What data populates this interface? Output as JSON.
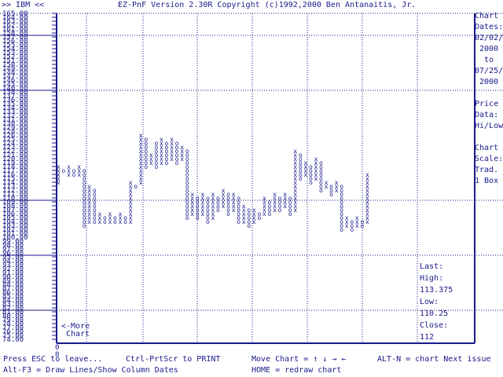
{
  "header": {
    "symbol_label": ">> IBM <<",
    "title": "EZ-PnF Version 2.30R Copyright (c)1992,2000 Ben Antanaitis, Jr."
  },
  "sidebar": {
    "chart_dates_label_1": "Chart",
    "chart_dates_label_2": "Dates:",
    "date_start": "02/02/",
    "year_start": "2000",
    "to": "to",
    "date_end": "07/25/",
    "year_end": "2000",
    "price_label_1": "Price",
    "price_label_2": "Data:",
    "price_value": "Hi/Low",
    "scale_label_1": "Chart",
    "scale_label_2": "Scale:",
    "scale_value_1": "Trad.",
    "scale_value_2": "1 Box"
  },
  "stats": {
    "last_label": "Last:",
    "high_label": "High:",
    "high_value": "113.375",
    "low_label": "Low:",
    "low_value": "110.25",
    "close_label": "Close:",
    "close_value": "112"
  },
  "more_chart": {
    "line1": "<-More",
    "line2": "Chart"
  },
  "x_axis": {
    "zero_label": "0"
  },
  "footer": {
    "esc": "Press ESC to leave...",
    "print": "Ctrl-PrtScr to PRINT",
    "move": "Move Chart = ↑ ↓ → ←",
    "next": "ALT-N = chart Next issue",
    "draw": "Alt-F3 = Draw Lines/Show Column Dates",
    "home": "HOME = redraw chart"
  },
  "colors": {
    "ink": "#1a1a8c",
    "background": "#ffffff"
  },
  "chart_data": {
    "type": "point-and-figure",
    "y_ticks": [
      "165.00",
      "164.00",
      "163.00",
      "162.00",
      "161.00",
      "158.00",
      "157.00",
      "156.00",
      "155.00",
      "154.00",
      "153.00",
      "152.00",
      "151.00",
      "150.00",
      "149.00",
      "148.00",
      "147.00",
      "146.00",
      "145.00",
      "140.00",
      "138.00",
      "137.00",
      "136.00",
      "135.00",
      "134.00",
      "133.00",
      "132.00",
      "131.00",
      "130.00",
      "129.00",
      "128.00",
      "126.00",
      "125.00",
      "124.00",
      "123.00",
      "122.00",
      "121.00",
      "120.00",
      "119.00",
      "118.00",
      "117.00",
      "116.00",
      "115.00",
      "114.00",
      "113.00",
      "112.00",
      "111.00",
      "110.00",
      "109.00",
      "108.00",
      "107.00",
      "106.00",
      "105.00",
      "104.00",
      "103.00",
      "102.00",
      "101.00",
      "100.00",
      "99.00",
      "98.00",
      "97.00",
      "96.00",
      "95.00",
      "94.00",
      "93.00",
      "92.00",
      "91.00",
      "90.00",
      "89.00",
      "88.00",
      "87.00",
      "86.00",
      "85.00",
      "84.00",
      "83.00",
      "82.00",
      "81.00",
      "80.00",
      "79.00",
      "78.00",
      "77.00",
      "76.00",
      "75.00",
      "74.00"
    ],
    "columns": [
      {
        "type": "X",
        "from": 114,
        "to": 118
      },
      {
        "type": "O",
        "from": 117,
        "to": 117
      },
      {
        "type": "X",
        "from": 116,
        "to": 118
      },
      {
        "type": "O",
        "from": 116,
        "to": 117
      },
      {
        "type": "X",
        "from": 116,
        "to": 118
      },
      {
        "type": "O",
        "from": 103,
        "to": 117
      },
      {
        "type": "X",
        "from": 104,
        "to": 113
      },
      {
        "type": "O",
        "from": 104,
        "to": 112
      },
      {
        "type": "X",
        "from": 104,
        "to": 106
      },
      {
        "type": "O",
        "from": 104,
        "to": 105
      },
      {
        "type": "X",
        "from": 104,
        "to": 106
      },
      {
        "type": "O",
        "from": 104,
        "to": 105
      },
      {
        "type": "X",
        "from": 104,
        "to": 106
      },
      {
        "type": "O",
        "from": 104,
        "to": 105
      },
      {
        "type": "X",
        "from": 104,
        "to": 114
      },
      {
        "type": "O",
        "from": 113,
        "to": 113
      },
      {
        "type": "X",
        "from": 114,
        "to": 126
      },
      {
        "type": "O",
        "from": 118,
        "to": 125
      },
      {
        "type": "X",
        "from": 119,
        "to": 121
      },
      {
        "type": "O",
        "from": 118,
        "to": 124
      },
      {
        "type": "X",
        "from": 119,
        "to": 125
      },
      {
        "type": "O",
        "from": 119,
        "to": 124
      },
      {
        "type": "X",
        "from": 120,
        "to": 125
      },
      {
        "type": "O",
        "from": 119,
        "to": 124
      },
      {
        "type": "X",
        "from": 120,
        "to": 123
      },
      {
        "type": "O",
        "from": 105,
        "to": 122
      },
      {
        "type": "X",
        "from": 106,
        "to": 111
      },
      {
        "type": "O",
        "from": 105,
        "to": 110
      },
      {
        "type": "X",
        "from": 106,
        "to": 111
      },
      {
        "type": "O",
        "from": 104,
        "to": 110
      },
      {
        "type": "X",
        "from": 105,
        "to": 111
      },
      {
        "type": "O",
        "from": 107,
        "to": 110
      },
      {
        "type": "X",
        "from": 108,
        "to": 112
      },
      {
        "type": "O",
        "from": 106,
        "to": 111
      },
      {
        "type": "X",
        "from": 107,
        "to": 111
      },
      {
        "type": "O",
        "from": 104,
        "to": 110
      },
      {
        "type": "X",
        "from": 104,
        "to": 108
      },
      {
        "type": "O",
        "from": 103,
        "to": 107
      },
      {
        "type": "X",
        "from": 104,
        "to": 107
      },
      {
        "type": "O",
        "from": 105,
        "to": 106
      },
      {
        "type": "X",
        "from": 106,
        "to": 110
      },
      {
        "type": "O",
        "from": 106,
        "to": 109
      },
      {
        "type": "X",
        "from": 107,
        "to": 111
      },
      {
        "type": "O",
        "from": 107,
        "to": 110
      },
      {
        "type": "X",
        "from": 108,
        "to": 111
      },
      {
        "type": "O",
        "from": 106,
        "to": 110
      },
      {
        "type": "X",
        "from": 107,
        "to": 122
      },
      {
        "type": "O",
        "from": 115,
        "to": 121
      },
      {
        "type": "X",
        "from": 116,
        "to": 119
      },
      {
        "type": "O",
        "from": 114,
        "to": 118
      },
      {
        "type": "X",
        "from": 115,
        "to": 120
      },
      {
        "type": "O",
        "from": 112,
        "to": 119
      },
      {
        "type": "X",
        "from": 113,
        "to": 114
      },
      {
        "type": "O",
        "from": 111,
        "to": 113
      },
      {
        "type": "X",
        "from": 112,
        "to": 114
      },
      {
        "type": "O",
        "from": 102,
        "to": 113
      },
      {
        "type": "X",
        "from": 103,
        "to": 105
      },
      {
        "type": "O",
        "from": 102,
        "to": 104
      },
      {
        "type": "X",
        "from": 103,
        "to": 105
      },
      {
        "type": "O",
        "from": 103,
        "to": 104
      },
      {
        "type": "X",
        "from": 104,
        "to": 116
      }
    ]
  }
}
